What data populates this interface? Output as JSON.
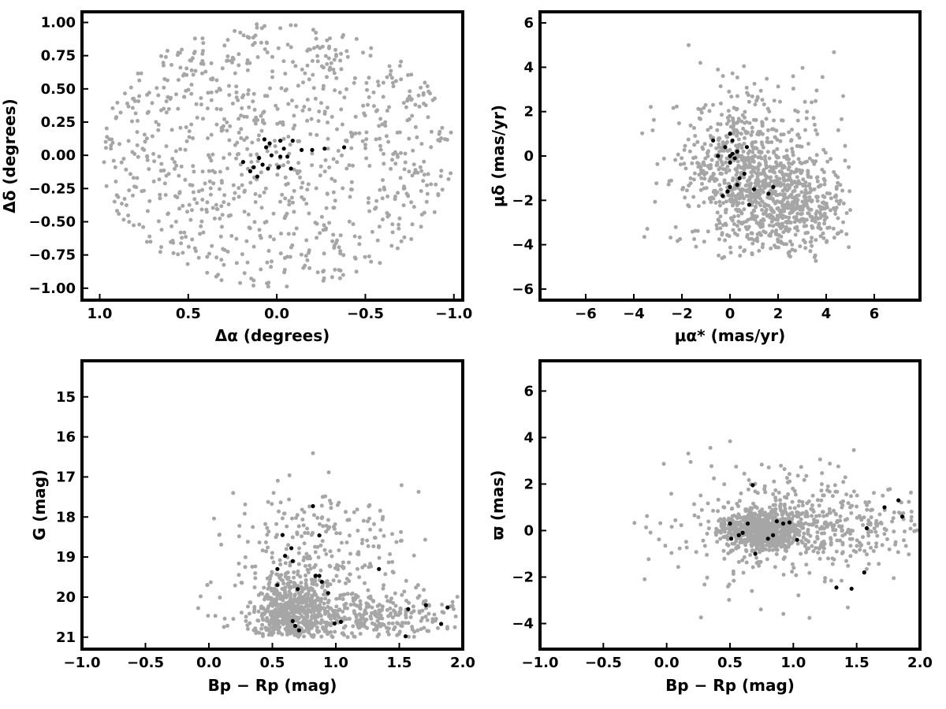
{
  "chart_data": [
    {
      "type": "scatter",
      "id": "sky",
      "title": "",
      "xlabel": "Δα (degrees)",
      "ylabel": "Δδ (degrees)",
      "xlim": [
        1.1,
        -1.05
      ],
      "ylim": [
        -1.09,
        1.08
      ],
      "xticks": [
        1.0,
        0.5,
        0.0,
        -0.5,
        -1.0
      ],
      "xtick_labels": [
        "1.0",
        "0.5",
        "0.0",
        "−0.5",
        "−1.0"
      ],
      "yticks": [
        -1.0,
        -0.75,
        -0.5,
        -0.25,
        0.0,
        0.25,
        0.5,
        0.75,
        1.0
      ],
      "ytick_labels": [
        "−1.00",
        "−0.75",
        "−0.50",
        "−0.25",
        "0.00",
        "0.25",
        "0.50",
        "0.75",
        "1.00"
      ],
      "grid": false,
      "series": [
        {
          "color": "#a6a6a6",
          "gen": "disk",
          "n": 900,
          "seed": 11,
          "params": {
            "cx": 0,
            "cy": 0,
            "rx": 1.0,
            "ry": 1.0
          }
        },
        {
          "color": "#000000",
          "points": [
            [
              0.07,
              0.12
            ],
            [
              0.04,
              0.09
            ],
            [
              -0.02,
              0.11
            ],
            [
              0.06,
              0.06
            ],
            [
              -0.04,
              0.05
            ],
            [
              -0.09,
              0.11
            ],
            [
              -0.14,
              0.04
            ],
            [
              -0.2,
              0.04
            ],
            [
              -0.27,
              0.05
            ],
            [
              -0.38,
              0.06
            ],
            [
              0.03,
              0.0
            ],
            [
              -0.02,
              -0.01
            ],
            [
              0.1,
              -0.02
            ],
            [
              0.19,
              -0.05
            ],
            [
              0.13,
              -0.09
            ],
            [
              0.08,
              -0.07
            ],
            [
              0.15,
              -0.12
            ],
            [
              0.05,
              -0.1
            ],
            [
              -0.01,
              -0.09
            ],
            [
              -0.08,
              -0.1
            ],
            [
              -0.06,
              -0.01
            ],
            [
              0.11,
              -0.16
            ]
          ]
        }
      ]
    },
    {
      "type": "scatter",
      "id": "pm",
      "title": "",
      "xlabel": "μα* (mas/yr)",
      "ylabel": "μδ (mas/yr)",
      "xlim": [
        -7.9,
        7.9
      ],
      "ylim": [
        -6.5,
        6.5
      ],
      "xticks": [
        -6,
        -4,
        -2,
        0,
        2,
        4,
        6
      ],
      "xtick_labels": [
        "−6",
        "−4",
        "−2",
        "0",
        "2",
        "4",
        "6"
      ],
      "yticks": [
        -6,
        -4,
        -2,
        0,
        2,
        4,
        6
      ],
      "ytick_labels": [
        "−6",
        "−4",
        "−2",
        "0",
        "2",
        "4",
        "6"
      ],
      "grid": false,
      "series": [
        {
          "color": "#a6a6a6",
          "gen": "mixture",
          "n": 1150,
          "seed": 23,
          "clip": {
            "xmin": -4.0,
            "xmax": 5.0,
            "ymin": -5.0,
            "ymax": 5.0
          },
          "params": [
            {
              "w": 0.4,
              "cx": 2.6,
              "cy": -2.3,
              "sx": 1.3,
              "sy": 1.0
            },
            {
              "w": 0.25,
              "cx": 0.4,
              "cy": -0.5,
              "sx": 1.0,
              "sy": 1.5
            },
            {
              "w": 0.35,
              "cx": 0.8,
              "cy": -0.8,
              "sx": 2.0,
              "sy": 2.0
            }
          ]
        },
        {
          "color": "#000000",
          "points": [
            [
              0.0,
              1.0
            ],
            [
              0.1,
              0.7
            ],
            [
              -0.7,
              0.7
            ],
            [
              -0.2,
              0.4
            ],
            [
              0.7,
              0.4
            ],
            [
              0.3,
              0.2
            ],
            [
              0.1,
              0.1
            ],
            [
              0.0,
              0.0
            ],
            [
              -0.5,
              0.0
            ],
            [
              0.2,
              -0.1
            ],
            [
              0.0,
              -0.3
            ],
            [
              0.6,
              -0.8
            ],
            [
              0.4,
              -1.0
            ],
            [
              0.3,
              -1.3
            ],
            [
              0.0,
              -1.4
            ],
            [
              -0.1,
              -1.6
            ],
            [
              -0.3,
              -1.8
            ],
            [
              1.0,
              -1.5
            ],
            [
              1.8,
              -1.4
            ],
            [
              1.6,
              -1.7
            ],
            [
              0.8,
              -2.2
            ]
          ]
        }
      ]
    },
    {
      "type": "scatter",
      "id": "cmd",
      "title": "",
      "xlabel": "Bp − Rp (mag)",
      "ylabel": "G (mag)",
      "xlim": [
        -1.0,
        2.0
      ],
      "ylim": [
        21.3,
        14.1
      ],
      "xticks": [
        -1.0,
        -0.5,
        0.0,
        0.5,
        1.0,
        1.5,
        2.0
      ],
      "xtick_labels": [
        "−1.0",
        "−0.5",
        "0.0",
        "0.5",
        "1.0",
        "1.5",
        "2.0"
      ],
      "yticks": [
        15,
        16,
        17,
        18,
        19,
        20,
        21
      ],
      "ytick_labels": [
        "15",
        "16",
        "17",
        "18",
        "19",
        "20",
        "21"
      ],
      "grid": false,
      "series": [
        {
          "color": "#a6a6a6",
          "gen": "mixture",
          "n": 1100,
          "seed": 37,
          "clip": {
            "xmin": -0.6,
            "xmax": 2.0,
            "ymin": 14.4,
            "ymax": 21.0
          },
          "params": [
            {
              "w": 0.45,
              "cx": 0.65,
              "cy": 20.4,
              "sx": 0.15,
              "sy": 0.45
            },
            {
              "w": 0.3,
              "cx": 1.2,
              "cy": 20.5,
              "sx": 0.4,
              "sy": 0.4
            },
            {
              "w": 0.25,
              "cx": 0.85,
              "cy": 19.0,
              "sx": 0.35,
              "sy": 0.9
            }
          ]
        },
        {
          "color": "#000000",
          "points": [
            [
              0.71,
              20.83
            ],
            [
              0.68,
              20.72
            ],
            [
              0.66,
              20.6
            ],
            [
              0.99,
              20.66
            ],
            [
              1.04,
              20.62
            ],
            [
              1.55,
              20.98
            ],
            [
              1.57,
              20.3
            ],
            [
              1.71,
              20.2
            ],
            [
              1.83,
              20.67
            ],
            [
              1.88,
              20.26
            ],
            [
              0.7,
              19.8
            ],
            [
              0.54,
              19.7
            ],
            [
              0.94,
              19.9
            ],
            [
              0.89,
              19.62
            ],
            [
              0.84,
              19.47
            ],
            [
              0.87,
              19.47
            ],
            [
              0.54,
              19.3
            ],
            [
              1.34,
              19.3
            ],
            [
              0.6,
              18.97
            ],
            [
              0.65,
              18.78
            ],
            [
              0.66,
              19.1
            ],
            [
              0.58,
              18.45
            ],
            [
              0.87,
              18.46
            ],
            [
              0.82,
              17.73
            ]
          ]
        }
      ]
    },
    {
      "type": "scatter",
      "id": "plx",
      "title": "",
      "xlabel": "Bp − Rp (mag)",
      "ylabel": "ϖ (mas)",
      "xlim": [
        -1.0,
        2.0
      ],
      "ylim": [
        -5.1,
        7.3
      ],
      "xticks": [
        -1.0,
        -0.5,
        0.0,
        0.5,
        1.0,
        1.5,
        2.0
      ],
      "xtick_labels": [
        "−1.0",
        "−0.5",
        "0.0",
        "0.5",
        "1.0",
        "1.5",
        "2.0"
      ],
      "yticks": [
        -4,
        -2,
        0,
        2,
        4,
        6
      ],
      "ytick_labels": [
        "−4",
        "−2",
        "0",
        "2",
        "4",
        "6"
      ],
      "grid": false,
      "series": [
        {
          "color": "#a6a6a6",
          "gen": "mixture",
          "n": 1200,
          "seed": 53,
          "clip": {
            "xmin": -0.6,
            "xmax": 2.0,
            "ymin": -4.7,
            "ymax": 6.8
          },
          "params": [
            {
              "w": 0.55,
              "cx": 0.75,
              "cy": 0.0,
              "sx": 0.15,
              "sy": 0.4
            },
            {
              "w": 0.25,
              "cx": 1.3,
              "cy": 0.3,
              "sx": 0.4,
              "sy": 0.8
            },
            {
              "w": 0.2,
              "cx": 0.9,
              "cy": 0.0,
              "sx": 0.45,
              "sy": 1.4
            }
          ]
        },
        {
          "color": "#000000",
          "points": [
            [
              0.68,
              1.95
            ],
            [
              0.5,
              0.3
            ],
            [
              0.64,
              0.3
            ],
            [
              0.92,
              0.3
            ],
            [
              0.97,
              0.35
            ],
            [
              0.6,
              -0.1
            ],
            [
              0.57,
              -0.2
            ],
            [
              0.84,
              -0.2
            ],
            [
              0.8,
              -0.35
            ],
            [
              0.51,
              -0.35
            ],
            [
              0.7,
              -1.0
            ],
            [
              1.03,
              -0.4
            ],
            [
              1.58,
              0.1
            ],
            [
              1.72,
              1.0
            ],
            [
              1.83,
              1.3
            ],
            [
              1.86,
              0.6
            ],
            [
              1.34,
              -2.45
            ],
            [
              1.46,
              -2.5
            ],
            [
              1.56,
              -1.8
            ],
            [
              0.87,
              0.4
            ]
          ]
        }
      ]
    }
  ]
}
